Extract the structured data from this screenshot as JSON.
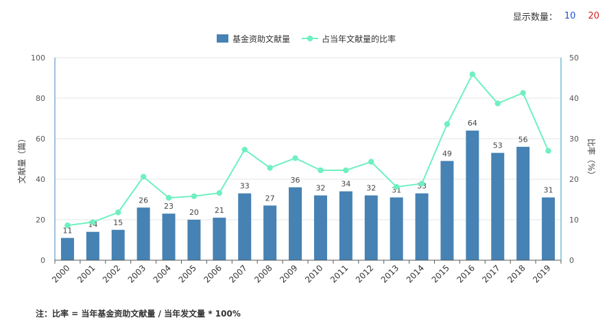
{
  "controls": {
    "label": "显示数量：",
    "option_1": "10",
    "option_2": "20"
  },
  "note": "注：比率 = 当年基金资助文献量 / 当年发文量 * 100%",
  "colors": {
    "bar": "#4682b4",
    "line": "#6ef0c0",
    "axis_right": "#2a9fbf"
  },
  "chart_data": {
    "type": "bar",
    "categories": [
      "2000",
      "2001",
      "2002",
      "2003",
      "2004",
      "2005",
      "2006",
      "2007",
      "2008",
      "2009",
      "2010",
      "2011",
      "2012",
      "2013",
      "2014",
      "2015",
      "2016",
      "2017",
      "2018",
      "2019"
    ],
    "series": [
      {
        "name": "基金资助文献量",
        "type": "bar",
        "axis": "left",
        "values": [
          11,
          14,
          15,
          26,
          23,
          20,
          21,
          33,
          27,
          36,
          32,
          34,
          32,
          31,
          33,
          49,
          64,
          53,
          56,
          31
        ]
      },
      {
        "name": "占当年文献量的比率",
        "type": "line",
        "axis": "right",
        "values": [
          8.6,
          9.4,
          11.8,
          20.6,
          15.4,
          15.8,
          16.6,
          27.3,
          22.8,
          25.2,
          22.2,
          22.2,
          24.3,
          18.1,
          18.9,
          33.6,
          45.9,
          38.7,
          41.3,
          27.0
        ]
      }
    ],
    "ylabel": "文献量（篇）",
    "ylabel_right": "比率（%）",
    "ylim": [
      0,
      100
    ],
    "ylim_right": [
      0,
      50
    ],
    "yticks": [
      "0",
      "20",
      "40",
      "60",
      "80",
      "100"
    ],
    "yticks_right": [
      "0",
      "10",
      "20",
      "30",
      "40",
      "50"
    ],
    "grid": true,
    "legend_position": "top-center"
  }
}
